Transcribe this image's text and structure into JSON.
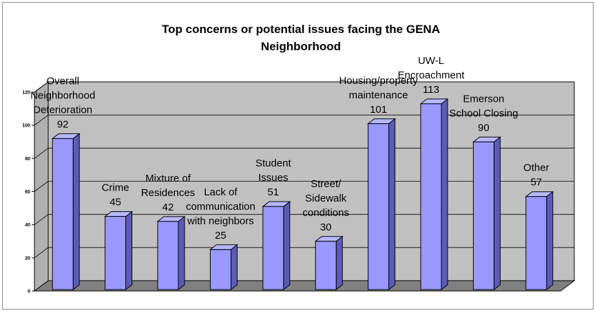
{
  "chart_data": {
    "type": "bar",
    "title_lines": [
      "Top concerns or potential issues facing the GENA",
      "Neighborhood"
    ],
    "categories": [
      [
        "Overall",
        "Neighborhood",
        "Deterioration"
      ],
      [
        "Crime"
      ],
      [
        "Mixture of",
        "Residences"
      ],
      [
        "Lack of",
        "communication",
        "with neighbors"
      ],
      [
        "Student",
        "Issues"
      ],
      [
        "Street/",
        "Sidewalk",
        "conditions"
      ],
      [
        "Housing/property",
        "maintenance"
      ],
      [
        "UW-L",
        "Encroachment"
      ],
      [
        "Emerson",
        "School Closing"
      ],
      [
        "Other"
      ]
    ],
    "values": [
      92,
      45,
      42,
      25,
      51,
      30,
      101,
      113,
      90,
      57
    ],
    "y_ticks": [
      0,
      20,
      40,
      60,
      80,
      100,
      120
    ],
    "ylim": [
      0,
      120
    ],
    "grid": true,
    "legend": "none",
    "colors": {
      "bar_front": "#9999ff",
      "bar_side": "#5c5cb8",
      "bar_top": "#b8b8ff",
      "wall": "#c0c0c0",
      "floor": "#808080",
      "gridline": "#000000"
    }
  }
}
